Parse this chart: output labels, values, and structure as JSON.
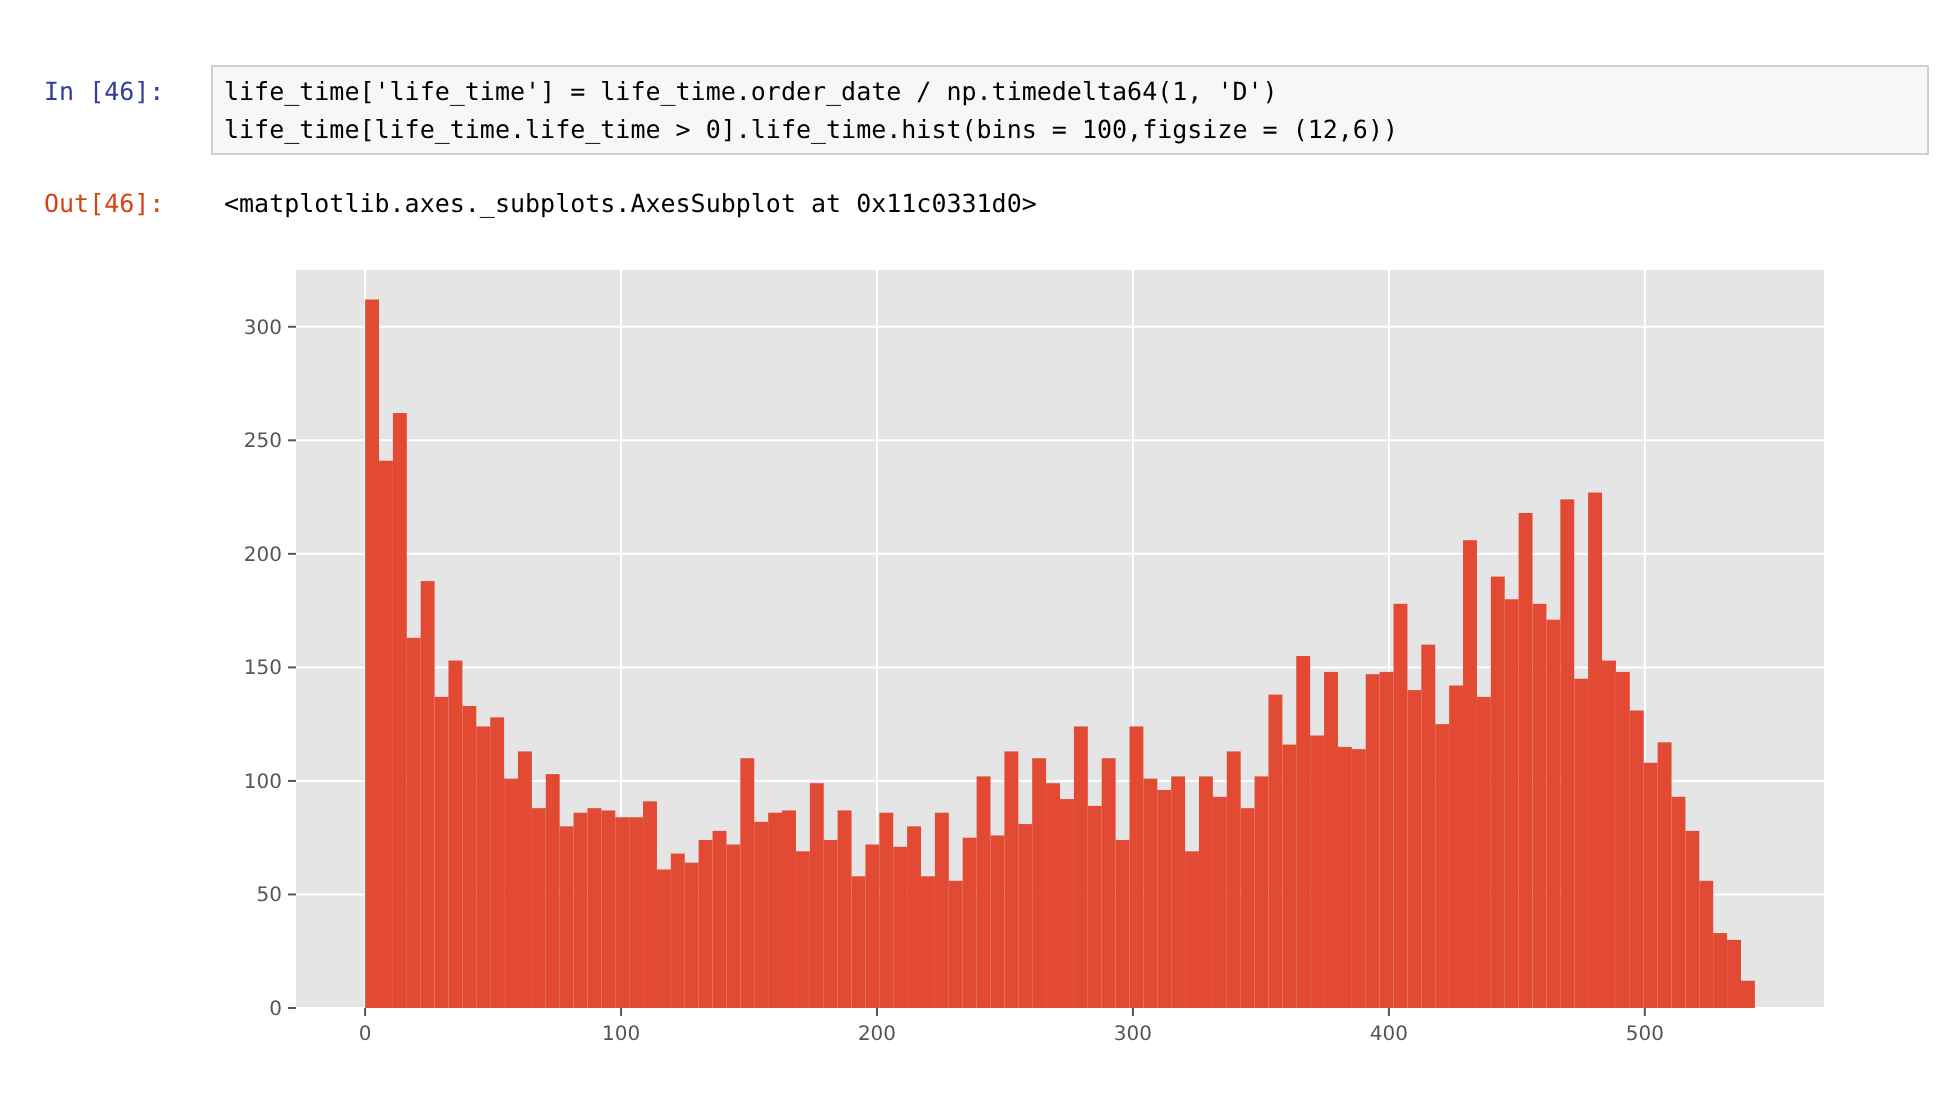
{
  "chart_data": {
    "type": "histogram",
    "annotations": [
      "In [46]:",
      "life_time['life_time'] = life_time.order_date / np.timedelta64(1, 'D')",
      "life_time[life_time.life_time > 0].life_time.hist(bins = 100,figsize = (12,6))",
      "Out[46]:",
      "<matplotlib.axes._subplots.AxesSubplot at 0x11c0331d0>"
    ],
    "bins": [
      0,
      5.43,
      10.86,
      16.29,
      21.72,
      27.15,
      32.58,
      38.01,
      43.44,
      48.87,
      54.3,
      59.73,
      65.16,
      70.59,
      76.02,
      81.45,
      86.88,
      92.31,
      97.74,
      103.17,
      108.6,
      114.03,
      119.46,
      124.89,
      130.32,
      135.75,
      141.18,
      146.61,
      152.04,
      157.47,
      162.9,
      168.33,
      173.76,
      179.19,
      184.62,
      190.05,
      195.48,
      200.91,
      206.34,
      211.77,
      217.2,
      222.63,
      228.06,
      233.49,
      238.92,
      244.35,
      249.78,
      255.21,
      260.64,
      266.07,
      271.5,
      276.93,
      282.36,
      287.79,
      293.22,
      298.65,
      304.08,
      309.51,
      314.94,
      320.37,
      325.8,
      331.23,
      336.66,
      342.09,
      347.52,
      352.95,
      358.38,
      363.81,
      369.24,
      374.67,
      380.1,
      385.53,
      390.96,
      396.39,
      401.82,
      407.25,
      412.68,
      418.11,
      423.54,
      428.97,
      434.4,
      439.83,
      445.26,
      450.69,
      456.12,
      461.55,
      466.98,
      472.41,
      477.84,
      483.27,
      488.7,
      494.13,
      499.56,
      504.99,
      510.42,
      515.85,
      521.28,
      526.71,
      532.14,
      537.57,
      543
    ],
    "values": [
      312,
      241,
      262,
      163,
      188,
      137,
      153,
      133,
      124,
      128,
      101,
      113,
      88,
      103,
      80,
      86,
      88,
      87,
      84,
      84,
      91,
      61,
      68,
      64,
      74,
      78,
      72,
      110,
      82,
      86,
      87,
      69,
      99,
      74,
      87,
      58,
      72,
      86,
      71,
      80,
      58,
      86,
      56,
      75,
      102,
      76,
      113,
      81,
      110,
      99,
      92,
      124,
      89,
      110,
      74,
      124,
      101,
      96,
      102,
      69,
      102,
      93,
      113,
      88,
      102,
      138,
      116,
      155,
      120,
      148,
      115,
      114,
      147,
      148,
      178,
      140,
      160,
      125,
      142,
      206,
      137,
      190,
      180,
      218,
      178,
      171,
      224,
      145,
      227,
      153,
      148,
      131,
      108,
      117,
      93,
      78,
      56,
      33,
      30,
      12
    ],
    "color": "#e24a33",
    "xlim": [
      -27,
      570
    ],
    "ylim": [
      0,
      325
    ],
    "xticks": [
      0,
      100,
      200,
      300,
      400,
      500
    ],
    "yticks": [
      0,
      50,
      100,
      150,
      200,
      250,
      300
    ],
    "grid": true
  }
}
